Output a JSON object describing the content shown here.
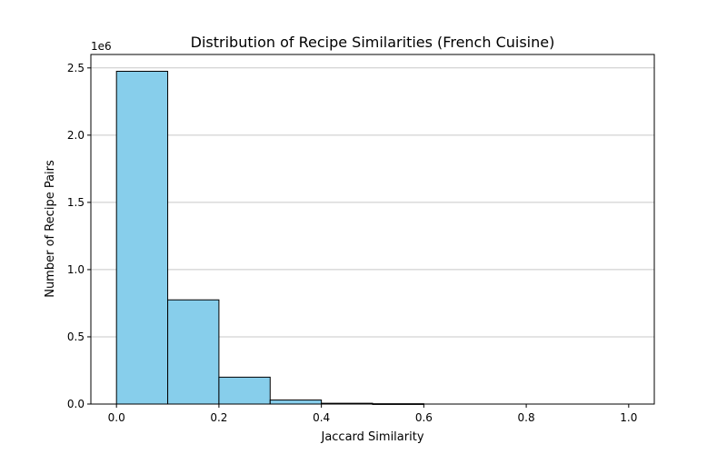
{
  "chart_data": {
    "type": "bar",
    "title": "Distribution of Recipe Similarities (French Cuisine)",
    "xlabel": "Jaccard Similarity",
    "ylabel": "Number of Recipe Pairs",
    "y_offset_label": "1e6",
    "bin_edges": [
      0.0,
      0.1,
      0.2,
      0.3,
      0.4,
      0.5,
      0.6,
      0.7,
      0.8,
      0.9,
      1.0
    ],
    "values": [
      2475000,
      775000,
      200000,
      30000,
      6000,
      2500,
      0,
      0,
      0,
      0
    ],
    "xlim": [
      -0.05,
      1.05
    ],
    "ylim": [
      0,
      2600000
    ],
    "x_ticks": [
      0.0,
      0.2,
      0.4,
      0.6,
      0.8,
      1.0
    ],
    "x_tick_labels": [
      "0.0",
      "0.2",
      "0.4",
      "0.6",
      "0.8",
      "1.0"
    ],
    "y_ticks": [
      0,
      500000,
      1000000,
      1500000,
      2000000,
      2500000
    ],
    "y_tick_labels": [
      "0.0",
      "0.5",
      "1.0",
      "1.5",
      "2.0",
      "2.5"
    ],
    "grid": {
      "y": true,
      "x": false
    },
    "bar_color": "#87CEEB",
    "bar_edge_color": "#000000",
    "grid_color": "#c8c8c8"
  }
}
